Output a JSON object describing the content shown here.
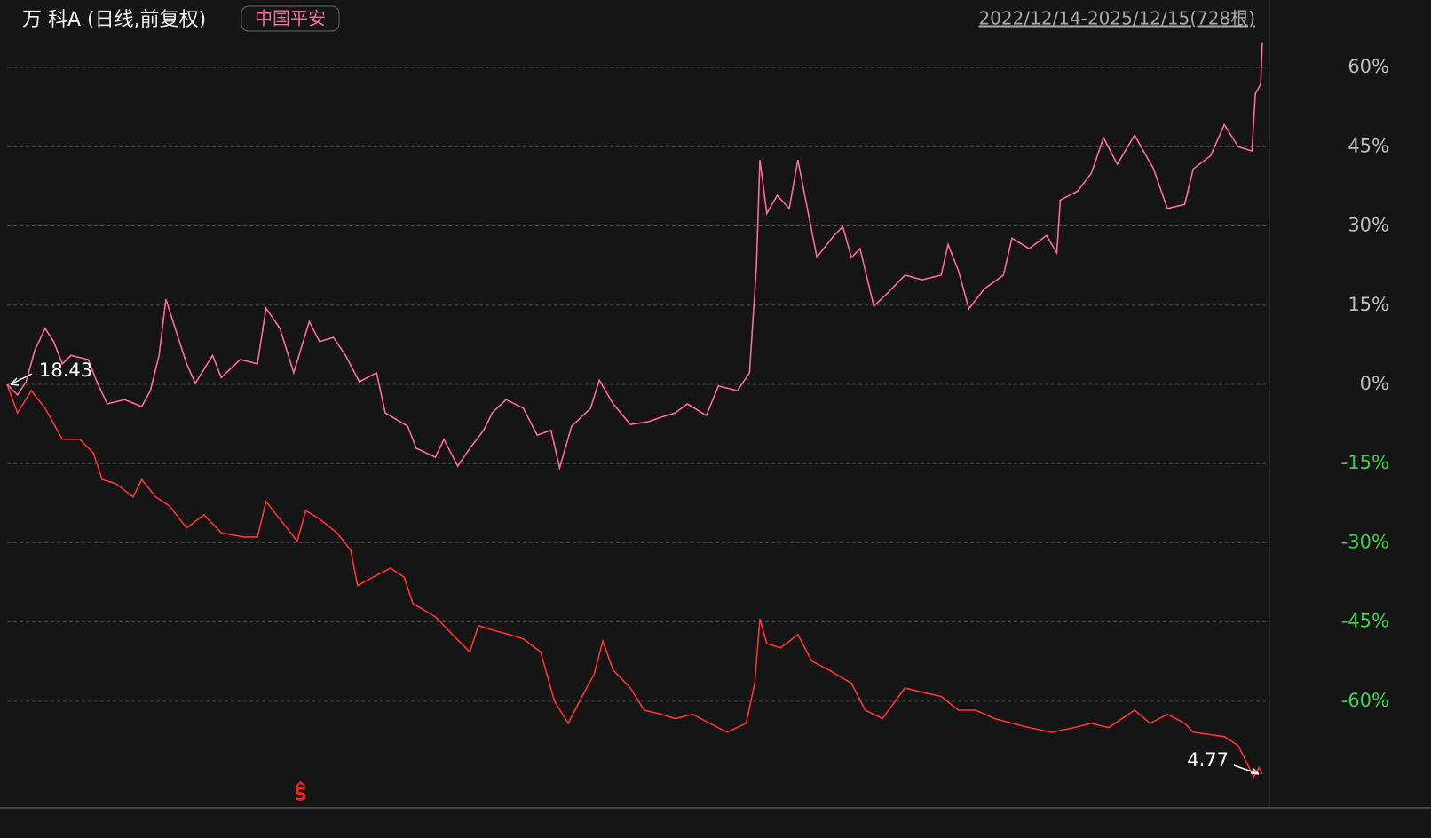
{
  "chart_data": {
    "type": "line",
    "title": "万  科A (日线,前复权)",
    "legend_label": "中国平安",
    "legend_color": "#ff6b9a",
    "date_range": "2022/12/14-2025/12/15(728根)",
    "start_label": "18.43",
    "end_label": "4.77",
    "marker": {
      "label": "S",
      "x": 170,
      "color": "#ff2020"
    },
    "xlim": [
      0,
      727
    ],
    "ylim": [
      -80.2,
      72.8
    ],
    "yticks": [
      {
        "value": 60,
        "label": "60%"
      },
      {
        "value": 45,
        "label": "45%"
      },
      {
        "value": 30,
        "label": "30%"
      },
      {
        "value": 15,
        "label": "15%"
      },
      {
        "value": 0,
        "label": "0%"
      },
      {
        "value": -15,
        "label": "-15%"
      },
      {
        "value": -30,
        "label": "-30%"
      },
      {
        "value": -45,
        "label": "-45%"
      },
      {
        "value": -60,
        "label": "-60%"
      }
    ],
    "grid": true,
    "series": [
      {
        "name": "万  科A",
        "color": "#ff3333",
        "x": [
          0,
          6,
          14,
          22,
          32,
          42,
          50,
          55,
          63,
          73,
          78,
          86,
          94,
          104,
          114,
          124,
          137,
          145,
          150,
          158,
          168,
          173,
          181,
          191,
          199,
          203,
          212,
          222,
          230,
          235,
          248,
          258,
          268,
          273,
          281,
          291,
          299,
          309,
          317,
          325,
          333,
          340,
          345,
          351,
          361,
          369,
          379,
          387,
          397,
          407,
          417,
          428,
          433,
          436,
          440,
          448,
          458,
          466,
          476,
          489,
          497,
          507,
          520,
          530,
          541,
          551,
          561,
          572,
          582,
          592,
          605,
          618,
          628,
          638,
          653,
          662,
          672,
          682,
          687,
          705,
          713,
          718,
          722,
          725,
          727
        ],
        "values": [
          0,
          -5.4,
          -1.2,
          -4.5,
          -10.4,
          -10.4,
          -13.0,
          -18.0,
          -18.8,
          -21.3,
          -18.0,
          -21.3,
          -23.0,
          -27.2,
          -24.7,
          -28.1,
          -28.9,
          -28.9,
          -22.2,
          -25.5,
          -29.7,
          -23.9,
          -25.5,
          -28.1,
          -31.4,
          -38.1,
          -36.5,
          -34.8,
          -36.5,
          -41.5,
          -44.0,
          -47.4,
          -50.7,
          -45.7,
          -46.5,
          -47.4,
          -48.2,
          -50.7,
          -60.0,
          -64.2,
          -59.1,
          -54.9,
          -48.6,
          -54.1,
          -57.5,
          -61.7,
          -62.5,
          -63.3,
          -62.5,
          -64.2,
          -65.9,
          -64.2,
          -56.6,
          -44.4,
          -49.1,
          -49.9,
          -47.4,
          -52.4,
          -54.1,
          -56.6,
          -61.7,
          -63.3,
          -57.5,
          -58.3,
          -59.1,
          -61.7,
          -61.7,
          -63.3,
          -64.2,
          -65.0,
          -65.9,
          -65.0,
          -64.2,
          -65.0,
          -61.7,
          -64.2,
          -62.5,
          -64.2,
          -65.9,
          -66.7,
          -68.4,
          -71.7,
          -74.3,
          -72.6,
          -73.8
        ]
      },
      {
        "name": "中国平安",
        "color": "#ff6b9a",
        "x": [
          0,
          6,
          11,
          16,
          22,
          27,
          32,
          37,
          47,
          52,
          58,
          68,
          78,
          83,
          88,
          92,
          99,
          104,
          109,
          119,
          124,
          135,
          145,
          150,
          158,
          166,
          175,
          181,
          189,
          196,
          204,
          214,
          219,
          232,
          237,
          248,
          253,
          261,
          268,
          276,
          281,
          289,
          299,
          307,
          315,
          320,
          327,
          338,
          343,
          351,
          361,
          371,
          379,
          387,
          394,
          405,
          412,
          423,
          430,
          434,
          436,
          440,
          446,
          453,
          458,
          464,
          469,
          479,
          484,
          489,
          494,
          502,
          510,
          520,
          530,
          541,
          545,
          551,
          557,
          566,
          577,
          582,
          592,
          602,
          608,
          610,
          620,
          628,
          635,
          643,
          653,
          664,
          672,
          682,
          687,
          697,
          705,
          713,
          721,
          723,
          726,
          727
        ],
        "values": [
          0,
          -2.0,
          0.5,
          6.4,
          10.6,
          8.1,
          3.9,
          5.5,
          4.7,
          0.5,
          -3.7,
          -2.9,
          -4.2,
          -1.2,
          5.5,
          16.1,
          8.9,
          3.9,
          0.2,
          5.5,
          1.3,
          4.7,
          3.9,
          14.4,
          10.6,
          2.2,
          11.9,
          8.1,
          8.9,
          5.5,
          0.5,
          2.2,
          -5.4,
          -7.9,
          -12.1,
          -13.8,
          -10.4,
          -15.5,
          -12.1,
          -8.7,
          -5.4,
          -2.9,
          -4.5,
          -9.6,
          -8.7,
          -15.8,
          -7.9,
          -4.5,
          0.8,
          -3.7,
          -7.6,
          -7.1,
          -6.2,
          -5.4,
          -3.7,
          -5.9,
          -0.3,
          -1.2,
          2.2,
          22.3,
          42.5,
          32.4,
          35.8,
          33.3,
          42.5,
          32.4,
          24.1,
          28.2,
          29.9,
          24.0,
          25.7,
          14.8,
          17.3,
          20.7,
          19.8,
          20.7,
          26.5,
          21.5,
          14.3,
          18.1,
          20.7,
          27.7,
          25.7,
          28.2,
          24.9,
          34.9,
          36.6,
          40.0,
          46.7,
          41.7,
          47.2,
          40.8,
          33.3,
          34.1,
          40.8,
          43.3,
          49.2,
          45.0,
          44.2,
          55.1,
          56.8,
          64.8
        ]
      }
    ]
  }
}
